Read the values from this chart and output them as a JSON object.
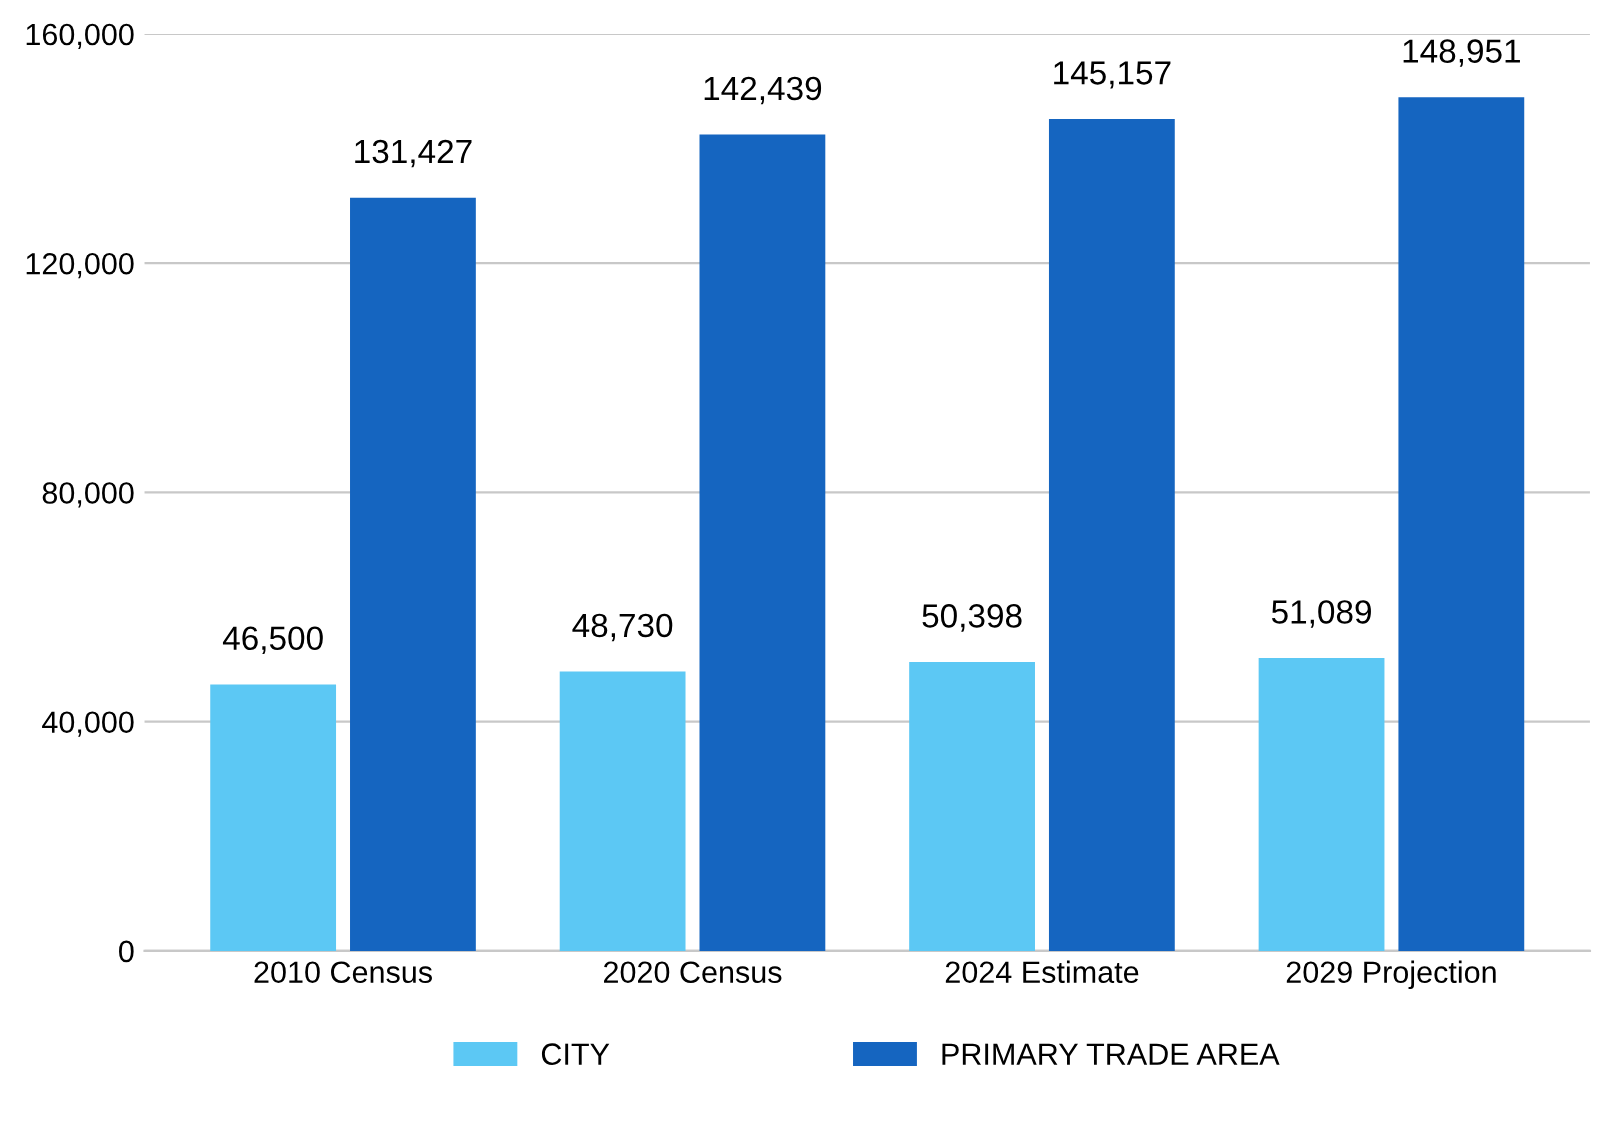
{
  "chart_data": {
    "type": "bar",
    "categories": [
      "2010 Census",
      "2020 Census",
      "2024 Estimate",
      "2029 Projection"
    ],
    "series": [
      {
        "name": "CITY",
        "color": "#5cc8f4",
        "values": [
          46500,
          48730,
          50398,
          51089
        ],
        "value_labels": [
          "46,500",
          "48,730",
          "50,398",
          "51,089"
        ]
      },
      {
        "name": "PRIMARY TRADE AREA",
        "color": "#1565c0",
        "values": [
          131427,
          142439,
          145157,
          148951
        ],
        "value_labels": [
          "131,427",
          "142,439",
          "145,157",
          "148,951"
        ]
      }
    ],
    "ylim": [
      0,
      160000
    ],
    "yticks": [
      {
        "value": 0,
        "label": "0"
      },
      {
        "value": 40000,
        "label": "40,000"
      },
      {
        "value": 80000,
        "label": "80,000"
      },
      {
        "value": 120000,
        "label": "120,000"
      },
      {
        "value": 160000,
        "label": "160,000"
      }
    ],
    "grid": "y",
    "legend": "bottom"
  }
}
